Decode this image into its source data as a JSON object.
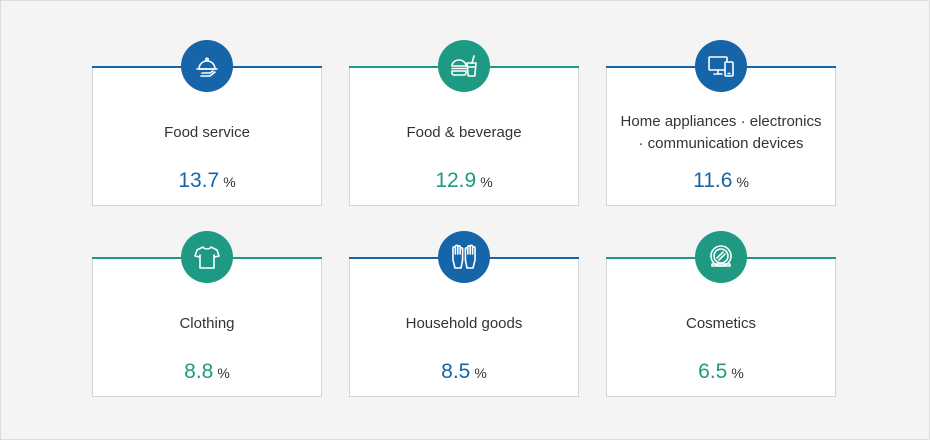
{
  "colors": {
    "blue": "#1565a8",
    "green": "#1e9a82"
  },
  "cards": [
    {
      "label_lines": [
        "Food service"
      ],
      "value": "13.7",
      "unit": "%",
      "icon": "cloche-icon",
      "color": "blue"
    },
    {
      "label_lines": [
        "Food & beverage"
      ],
      "value": "12.9",
      "unit": "%",
      "icon": "burger-drink-icon",
      "color": "green"
    },
    {
      "label_lines": [
        "Home appliances · electronics",
        "· communication devices"
      ],
      "value": "11.6",
      "unit": "%",
      "icon": "monitor-phone-icon",
      "color": "blue"
    },
    {
      "label_lines": [
        "Clothing"
      ],
      "value": "8.8",
      "unit": "%",
      "icon": "tshirt-icon",
      "color": "green"
    },
    {
      "label_lines": [
        "Household goods"
      ],
      "value": "8.5",
      "unit": "%",
      "icon": "gloves-icon",
      "color": "blue"
    },
    {
      "label_lines": [
        "Cosmetics"
      ],
      "value": "6.5",
      "unit": "%",
      "icon": "compact-mirror-icon",
      "color": "green"
    }
  ]
}
